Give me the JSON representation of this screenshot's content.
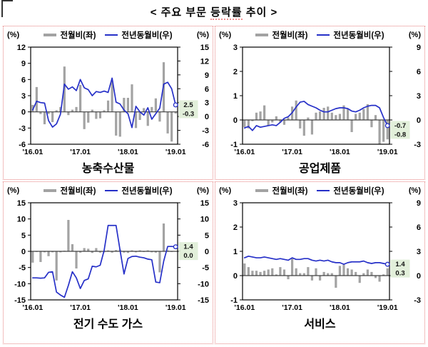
{
  "header": {
    "title_pre": "< 주요 부문 ",
    "title_mid": "등락률",
    "title_post": " 추이 >"
  },
  "axis_unit": "(%)",
  "legend": {
    "bar_label": "전월비(좌)",
    "line_label": "전년동월비(우)"
  },
  "colors": {
    "bar": "#A3A3A3",
    "line": "#2630C8",
    "label_box": "#E2EFDA",
    "cell_border": "#E57E7E",
    "zero_line": "#404040",
    "plot_border": "#000000"
  },
  "x_tick_labels": [
    "'16.01",
    "'17.01",
    "'18.01",
    "'19.01"
  ],
  "x_tick_months": [
    1,
    13,
    25,
    37
  ],
  "x_months": [
    "2016.01",
    "2016.02",
    "2016.03",
    "2016.04",
    "2016.05",
    "2016.06",
    "2016.07",
    "2016.08",
    "2016.09",
    "2016.10",
    "2016.11",
    "2016.12",
    "2017.01",
    "2017.02",
    "2017.03",
    "2017.04",
    "2017.05",
    "2017.06",
    "2017.07",
    "2017.08",
    "2017.09",
    "2017.10",
    "2017.11",
    "2017.12",
    "2018.01",
    "2018.02",
    "2018.03",
    "2018.04",
    "2018.05",
    "2018.06",
    "2018.07",
    "2018.08",
    "2018.09",
    "2018.10",
    "2018.11",
    "2018.12",
    "2019.01"
  ],
  "chart_data": [
    {
      "type": "bar+line",
      "title": "농축수산물",
      "left_axis": {
        "unit": "(%)",
        "ticks": [
          12,
          9,
          6,
          3,
          0,
          -3,
          -6
        ],
        "range": [
          -6,
          12
        ]
      },
      "right_axis": {
        "unit": "(%)",
        "ticks": [
          15,
          12,
          9,
          6,
          3,
          0,
          -3,
          -6
        ],
        "range": [
          -6,
          15
        ]
      },
      "end_labels": {
        "line": "2.5",
        "bar": "-0.3"
      },
      "series": [
        {
          "name": "전월비(좌)",
          "type": "bar",
          "axis": "left",
          "values": [
            1.3,
            4.6,
            -0.4,
            -2.3,
            -0.4,
            -1.9,
            0.3,
            0.9,
            8.4,
            -0.6,
            0.4,
            0.9,
            5.0,
            -3.2,
            -2.0,
            0.4,
            -1.3,
            -1.2,
            0.3,
            2.1,
            5.7,
            -4.4,
            -4.6,
            2.6,
            2.6,
            5.1,
            -3.0,
            -1.5,
            0.7,
            -2.6,
            0.9,
            2.5,
            -1.8,
            9.2,
            -4.0,
            -5.5,
            -0.3
          ]
        },
        {
          "name": "전년동월비(우)",
          "type": "line",
          "axis": "right",
          "values": [
            1.4,
            3.3,
            3.0,
            2.9,
            -0.9,
            -2.3,
            -1.6,
            0.5,
            7.0,
            5.9,
            6.4,
            5.6,
            8.0,
            6.2,
            5.8,
            4.5,
            5.4,
            5.2,
            5.5,
            5.2,
            8.3,
            3.1,
            2.7,
            1.4,
            0.6,
            -2.4,
            2.2,
            1.0,
            0.3,
            1.9,
            -0.6,
            0.6,
            1.8,
            7.0,
            7.4,
            6.0,
            2.5
          ]
        }
      ]
    },
    {
      "type": "bar+line",
      "title": "공업제품",
      "left_axis": {
        "unit": "(%)",
        "ticks": [
          3,
          2,
          1,
          0,
          -1
        ],
        "range": [
          -1,
          3
        ]
      },
      "right_axis": {
        "unit": "(%)",
        "ticks": [
          9,
          6,
          3,
          0,
          -3
        ],
        "range": [
          -3,
          9
        ]
      },
      "end_labels": {
        "line": "-0.7",
        "bar": "-0.8"
      },
      "series": [
        {
          "name": "전월비(좌)",
          "type": "bar",
          "axis": "left",
          "values": [
            -0.3,
            -0.35,
            -0.05,
            0.3,
            0.35,
            0.6,
            -0.25,
            -0.1,
            0.15,
            -0.1,
            -0.2,
            0.1,
            0.55,
            0.8,
            -0.35,
            -0.65,
            0.1,
            -0.6,
            0.3,
            0.35,
            0.5,
            0.55,
            0.3,
            0.2,
            0.25,
            0.6,
            0.45,
            -0.5,
            0.25,
            0.3,
            0.45,
            0.65,
            -0.3,
            0.2,
            -1.0,
            -0.9,
            -0.8
          ]
        },
        {
          "name": "전년동월비(우)",
          "type": "line",
          "axis": "right",
          "values": [
            -1.0,
            -0.8,
            -1.3,
            -0.7,
            -0.9,
            -0.8,
            -0.7,
            -0.6,
            -0.7,
            -0.3,
            0.2,
            0.4,
            0.9,
            1.6,
            2.2,
            2.3,
            1.9,
            1.7,
            1.5,
            1.2,
            1.0,
            1.0,
            1.2,
            1.4,
            1.5,
            1.5,
            1.4,
            1.1,
            1.0,
            1.2,
            1.5,
            1.7,
            1.8,
            1.8,
            1.5,
            0.3,
            -0.7
          ]
        }
      ]
    },
    {
      "type": "bar+line",
      "title": "전기 수도 가스",
      "left_axis": {
        "unit": "(%)",
        "ticks": [
          15,
          10,
          5,
          0,
          -5,
          -10,
          -15
        ],
        "range": [
          -15,
          15
        ]
      },
      "right_axis": {
        "unit": "(%)",
        "ticks": [
          15,
          10,
          5,
          0,
          -5,
          -10,
          -15
        ],
        "range": [
          -15,
          15
        ]
      },
      "end_labels": {
        "line": "1.4",
        "bar": "0.0"
      },
      "series": [
        {
          "name": "전월비(좌)",
          "type": "bar",
          "axis": "left",
          "values": [
            -3.5,
            -0.2,
            -3.3,
            -0.3,
            -1.5,
            -0.3,
            -9.0,
            -0.3,
            0.2,
            9.7,
            2.2,
            -5.3,
            -0.4,
            1.0,
            0.8,
            -0.5,
            1.0,
            -0.4,
            -0.3,
            0.3,
            -0.4,
            0.4,
            0.5,
            -0.4,
            -0.5,
            0.3,
            -0.3,
            0.3,
            -0.2,
            0.3,
            -0.3,
            -0.4,
            -6.5,
            8.6,
            0.3,
            -0.2,
            0.0
          ]
        },
        {
          "name": "전년동월비(우)",
          "type": "line",
          "axis": "right",
          "values": [
            -8.2,
            -8.2,
            -8.3,
            -8.2,
            -6.5,
            -6.3,
            -12.6,
            -13.5,
            -14.2,
            -10.5,
            -6.3,
            -8.2,
            -11.5,
            -9.0,
            -8.5,
            -4.6,
            -4.8,
            -4.3,
            0.3,
            8.0,
            8.0,
            8.0,
            0.4,
            -7.0,
            -2.2,
            -1.6,
            -1.5,
            -1.8,
            -2.0,
            -2.4,
            -2.6,
            -9.5,
            -9.7,
            -3.0,
            1.5,
            1.5,
            1.4
          ]
        }
      ]
    },
    {
      "type": "bar+line",
      "title": "서비스",
      "left_axis": {
        "unit": "(%)",
        "ticks": [
          3,
          2,
          1,
          0,
          -1
        ],
        "range": [
          -1,
          3
        ]
      },
      "right_axis": {
        "unit": "(%)",
        "ticks": [
          9,
          6,
          3,
          0,
          -3
        ],
        "range": [
          -3,
          9
        ]
      },
      "end_labels": {
        "line": "1.4",
        "bar": "0.3"
      },
      "series": [
        {
          "name": "전월비(좌)",
          "type": "bar",
          "axis": "left",
          "values": [
            0.5,
            0.35,
            0.2,
            0.2,
            0.15,
            0.2,
            0.25,
            0.3,
            0.05,
            0.35,
            0.25,
            -0.15,
            0.7,
            0.3,
            0.1,
            0.1,
            0.35,
            -0.2,
            0.3,
            -0.2,
            0.15,
            0.1,
            0.1,
            -0.5,
            0.4,
            0.45,
            0.3,
            0.25,
            0.15,
            -0.3,
            0.1,
            0.25,
            0.15,
            -0.1,
            -0.25,
            0.05,
            0.3
          ]
        },
        {
          "name": "전년동월비(우)",
          "type": "line",
          "axis": "right",
          "values": [
            2.2,
            2.4,
            2.3,
            2.2,
            2.2,
            2.3,
            2.2,
            2.1,
            2.0,
            2.1,
            2.0,
            1.9,
            2.2,
            2.0,
            2.0,
            2.1,
            2.1,
            1.9,
            1.8,
            1.9,
            1.8,
            1.9,
            1.7,
            1.6,
            1.6,
            1.4,
            1.6,
            1.7,
            1.7,
            1.7,
            1.8,
            1.6,
            1.5,
            1.6,
            1.6,
            1.5,
            1.4
          ]
        }
      ]
    }
  ]
}
